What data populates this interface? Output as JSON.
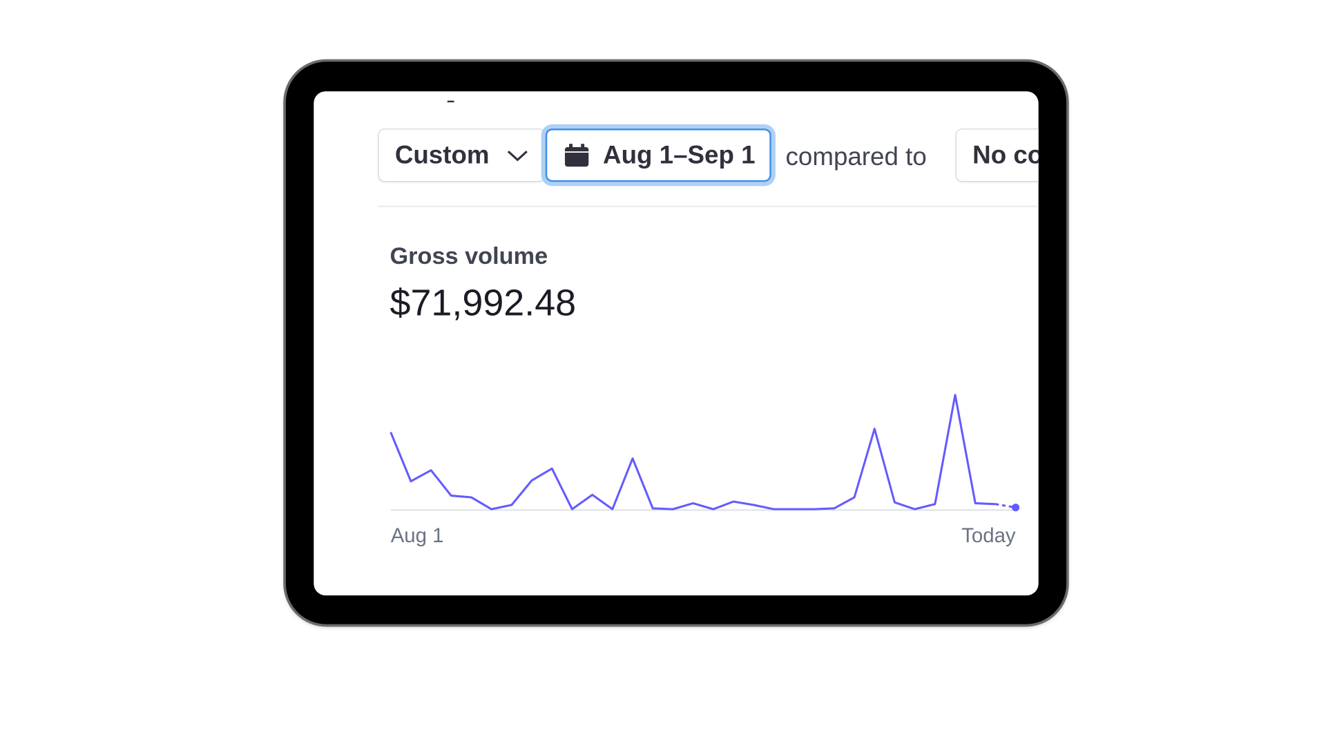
{
  "toolbar": {
    "period": "Custom",
    "date_range": "Aug 1–Sep 1",
    "compare_label": "compared to",
    "comparison": "No co"
  },
  "metric": {
    "title": "Gross volume",
    "value": "$71,992.48"
  },
  "chart_data": {
    "type": "line",
    "color": "#635bff",
    "categories": [
      "Aug 1",
      null,
      null,
      null,
      null,
      null,
      null,
      null,
      null,
      null,
      null,
      null,
      null,
      null,
      null,
      null,
      null,
      null,
      null,
      null,
      null,
      null,
      null,
      null,
      null,
      null,
      null,
      null,
      null,
      null,
      null,
      "Today"
    ],
    "values": [
      92,
      34,
      47,
      17,
      15,
      1,
      6,
      35,
      49,
      1,
      18,
      1,
      61,
      2,
      1,
      8,
      1,
      10,
      6,
      1,
      1,
      1,
      2,
      15,
      96,
      9,
      1,
      7,
      136,
      8,
      7,
      3
    ]
  }
}
